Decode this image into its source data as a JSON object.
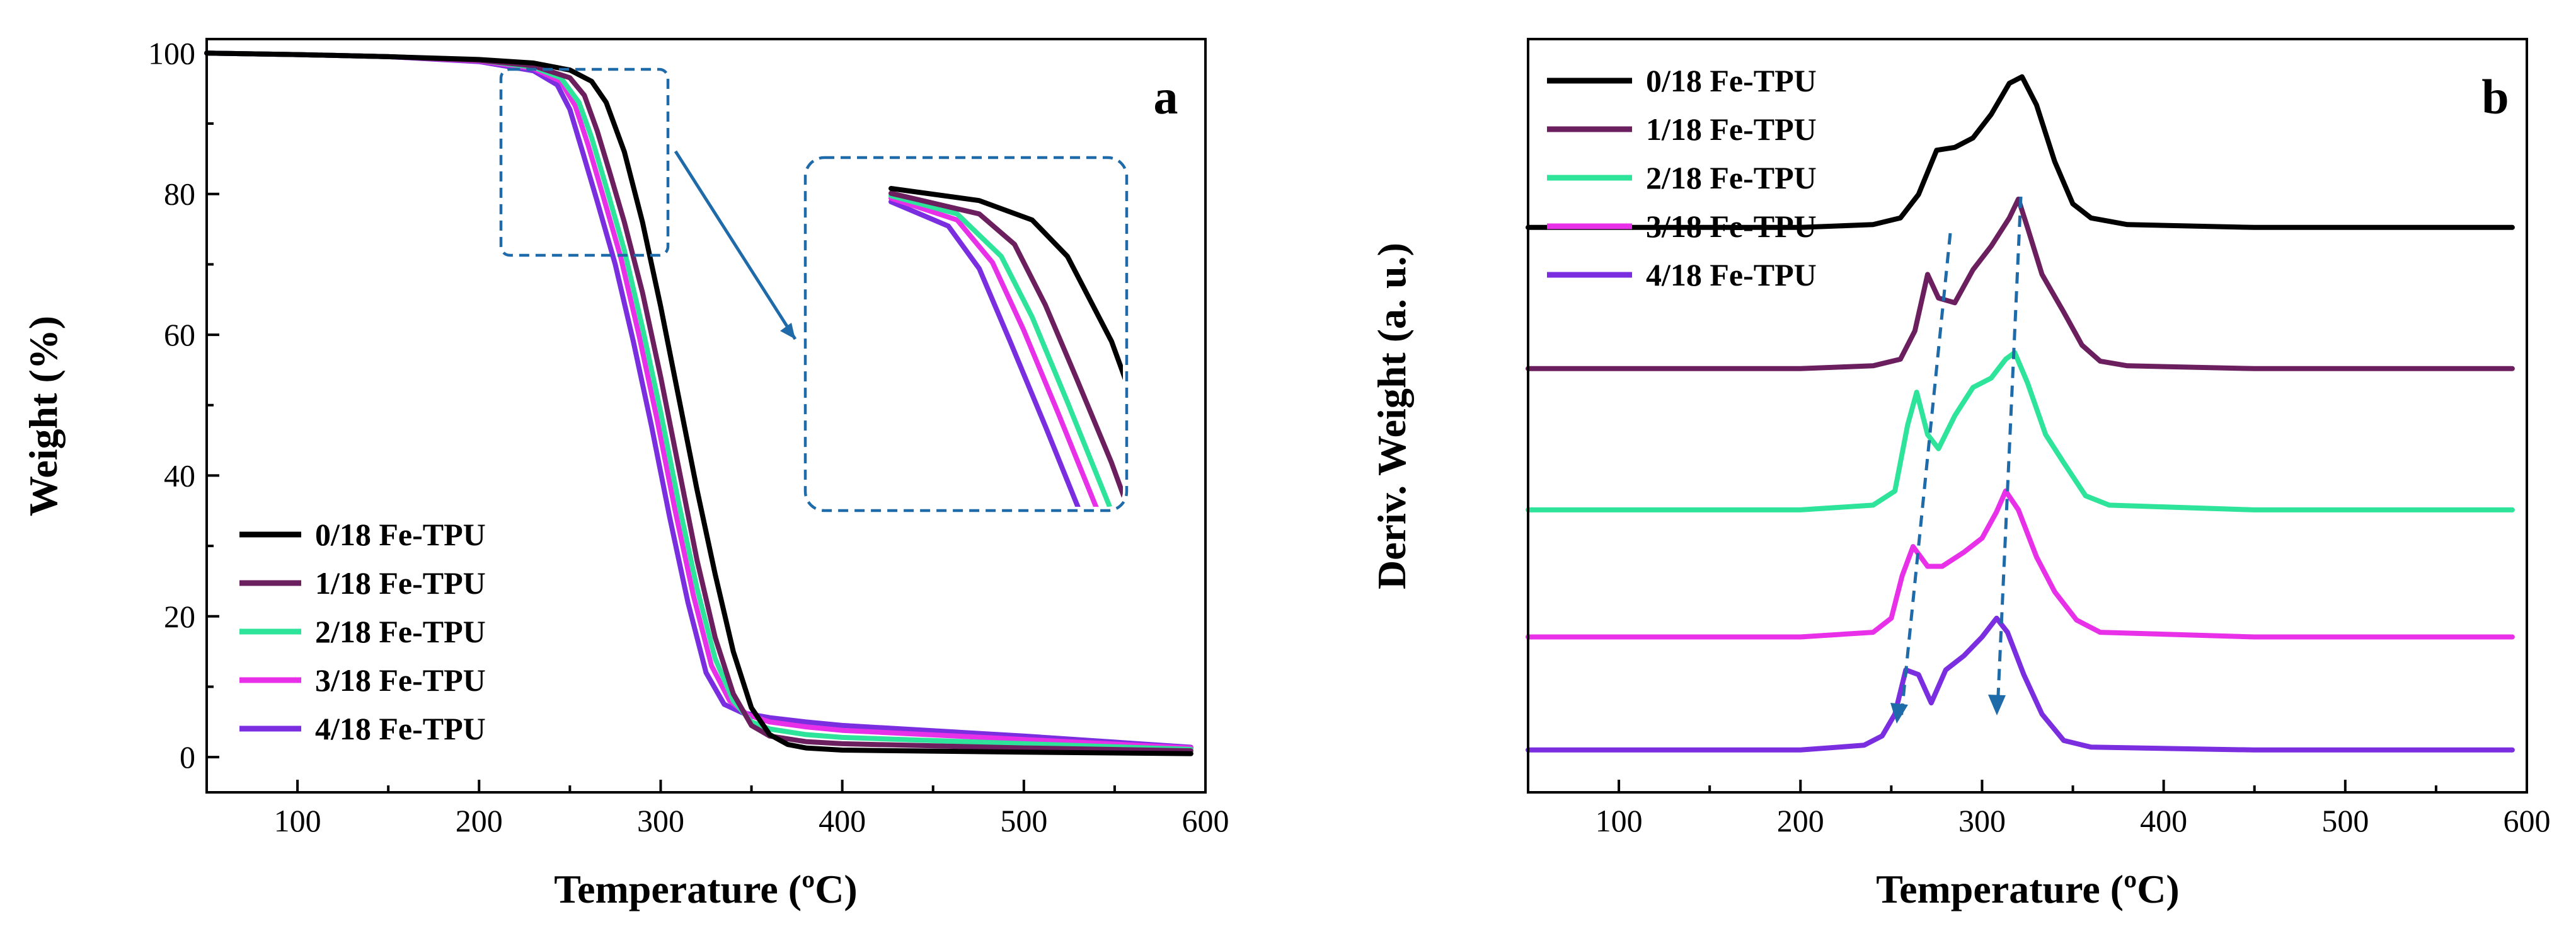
{
  "chart_data": [
    {
      "id": "a",
      "type": "line",
      "panel_label": "a",
      "xlabel": "Temperature (ºC)",
      "ylabel": "Weight (%)",
      "xlim": [
        50,
        600
      ],
      "ylim": [
        -5,
        102
      ],
      "xticks": [
        100,
        200,
        300,
        400,
        500,
        600
      ],
      "yticks": [
        0,
        20,
        40,
        60,
        80,
        100
      ],
      "legend_position": "lower-left",
      "inset": {
        "description": "zoom of region",
        "x_range": [
          212,
          282
        ],
        "y_range": [
          73,
          100
        ]
      },
      "series": [
        {
          "name": "0/18 Fe-TPU",
          "color": "#000000",
          "points": [
            [
              50,
              100
            ],
            [
              100,
              99.8
            ],
            [
              150,
              99.5
            ],
            [
              200,
              99.1
            ],
            [
              230,
              98.6
            ],
            [
              250,
              97.6
            ],
            [
              262,
              96
            ],
            [
              270,
              93
            ],
            [
              280,
              86
            ],
            [
              290,
              76
            ],
            [
              300,
              64
            ],
            [
              310,
              51
            ],
            [
              320,
              38
            ],
            [
              330,
              26
            ],
            [
              340,
              15
            ],
            [
              350,
              7
            ],
            [
              360,
              3.2
            ],
            [
              370,
              1.8
            ],
            [
              380,
              1.3
            ],
            [
              400,
              1.0
            ],
            [
              500,
              0.7
            ],
            [
              592,
              0.5
            ]
          ]
        },
        {
          "name": "1/18 Fe-TPU",
          "color": "#6b1f5f",
          "points": [
            [
              50,
              100
            ],
            [
              100,
              99.8
            ],
            [
              150,
              99.5
            ],
            [
              200,
              99.0
            ],
            [
              230,
              98.2
            ],
            [
              250,
              96.5
            ],
            [
              258,
              94
            ],
            [
              265,
              89
            ],
            [
              272,
              83
            ],
            [
              280,
              76
            ],
            [
              290,
              66
            ],
            [
              300,
              54
            ],
            [
              310,
              41
            ],
            [
              320,
              28
            ],
            [
              330,
              17
            ],
            [
              340,
              9
            ],
            [
              350,
              4.5
            ],
            [
              360,
              3.0
            ],
            [
              380,
              2.2
            ],
            [
              400,
              1.9
            ],
            [
              500,
              1.3
            ],
            [
              592,
              0.9
            ]
          ]
        },
        {
          "name": "2/18 Fe-TPU",
          "color": "#2ee39a",
          "points": [
            [
              50,
              100
            ],
            [
              100,
              99.8
            ],
            [
              150,
              99.5
            ],
            [
              200,
              99.0
            ],
            [
              230,
              98.0
            ],
            [
              245,
              96.5
            ],
            [
              255,
              93
            ],
            [
              262,
              88
            ],
            [
              270,
              81
            ],
            [
              280,
              72
            ],
            [
              290,
              61
            ],
            [
              300,
              49
            ],
            [
              310,
              36
            ],
            [
              320,
              24
            ],
            [
              330,
              14
            ],
            [
              340,
              8
            ],
            [
              350,
              5
            ],
            [
              360,
              4.0
            ],
            [
              380,
              3.2
            ],
            [
              400,
              2.8
            ],
            [
              500,
              1.9
            ],
            [
              592,
              1.1
            ]
          ]
        },
        {
          "name": "3/18 Fe-TPU",
          "color": "#e830e8",
          "points": [
            [
              50,
              100
            ],
            [
              100,
              99.8
            ],
            [
              150,
              99.5
            ],
            [
              200,
              98.9
            ],
            [
              230,
              97.8
            ],
            [
              245,
              96
            ],
            [
              253,
              92.5
            ],
            [
              260,
              87
            ],
            [
              268,
              80
            ],
            [
              278,
              71
            ],
            [
              288,
              60
            ],
            [
              298,
              48
            ],
            [
              308,
              35
            ],
            [
              318,
              23
            ],
            [
              328,
              13
            ],
            [
              338,
              8
            ],
            [
              348,
              6
            ],
            [
              360,
              5.0
            ],
            [
              380,
              4.3
            ],
            [
              400,
              3.8
            ],
            [
              500,
              2.5
            ],
            [
              592,
              1.3
            ]
          ]
        },
        {
          "name": "4/18 Fe-TPU",
          "color": "#7a2ee0",
          "points": [
            [
              50,
              100
            ],
            [
              100,
              99.8
            ],
            [
              150,
              99.5
            ],
            [
              200,
              98.8
            ],
            [
              230,
              97.5
            ],
            [
              243,
              95.5
            ],
            [
              250,
              92
            ],
            [
              257,
              86
            ],
            [
              265,
              79
            ],
            [
              275,
              70
            ],
            [
              285,
              59
            ],
            [
              295,
              47
            ],
            [
              305,
              34
            ],
            [
              315,
              22
            ],
            [
              325,
              12
            ],
            [
              335,
              7.5
            ],
            [
              345,
              6.3
            ],
            [
              360,
              5.6
            ],
            [
              380,
              5.0
            ],
            [
              400,
              4.5
            ],
            [
              500,
              3.0
            ],
            [
              592,
              1.4
            ]
          ]
        }
      ]
    },
    {
      "id": "b",
      "type": "line",
      "panel_label": "b",
      "xlabel": "Temperature (ºC)",
      "ylabel": "Deriv. Weight (a. u.)",
      "xlim": [
        50,
        600
      ],
      "xticks": [
        100,
        200,
        300,
        400,
        500,
        600
      ],
      "y_tick_labels": "none",
      "legend_position": "top-left",
      "annotations": [
        "dashed arrow tracking first peak shift (~280 to ~258 ºC)",
        "dashed arrow tracking main peak shift (~318 to ~310 ºC)"
      ],
      "series": [
        {
          "name": "0/18 Fe-TPU",
          "color": "#000000",
          "baseline": 60,
          "points": [
            [
              50,
              0
            ],
            [
              200,
              0
            ],
            [
              240,
              0.3
            ],
            [
              255,
              1
            ],
            [
              265,
              3.5
            ],
            [
              275,
              8.2
            ],
            [
              285,
              8.5
            ],
            [
              295,
              9.5
            ],
            [
              305,
              12
            ],
            [
              315,
              15.3
            ],
            [
              322,
              16
            ],
            [
              330,
              13
            ],
            [
              340,
              7
            ],
            [
              350,
              2.5
            ],
            [
              360,
              1
            ],
            [
              380,
              0.3
            ],
            [
              450,
              0
            ],
            [
              592,
              0
            ]
          ]
        },
        {
          "name": "1/18 Fe-TPU",
          "color": "#6b1f5f",
          "baseline": 45,
          "points": [
            [
              50,
              0
            ],
            [
              200,
              0
            ],
            [
              240,
              0.3
            ],
            [
              255,
              1
            ],
            [
              263,
              4
            ],
            [
              270,
              10
            ],
            [
              276,
              7.5
            ],
            [
              285,
              7
            ],
            [
              295,
              10.5
            ],
            [
              305,
              13
            ],
            [
              315,
              16
            ],
            [
              320,
              18
            ],
            [
              325,
              15
            ],
            [
              333,
              10
            ],
            [
              345,
              6
            ],
            [
              355,
              2.5
            ],
            [
              365,
              0.8
            ],
            [
              380,
              0.3
            ],
            [
              450,
              0
            ],
            [
              592,
              0
            ]
          ]
        },
        {
          "name": "2/18 Fe-TPU",
          "color": "#2ee39a",
          "baseline": 30,
          "points": [
            [
              50,
              0
            ],
            [
              200,
              0
            ],
            [
              240,
              0.5
            ],
            [
              252,
              2
            ],
            [
              259,
              9
            ],
            [
              264,
              12.5
            ],
            [
              270,
              8
            ],
            [
              276,
              6.5
            ],
            [
              285,
              10
            ],
            [
              295,
              13
            ],
            [
              305,
              14
            ],
            [
              313,
              16
            ],
            [
              318,
              16.7
            ],
            [
              325,
              13.5
            ],
            [
              335,
              8
            ],
            [
              345,
              5
            ],
            [
              357,
              1.5
            ],
            [
              370,
              0.5
            ],
            [
              450,
              0
            ],
            [
              592,
              0
            ]
          ]
        },
        {
          "name": "3/18 Fe-TPU",
          "color": "#e830e8",
          "baseline": 16.5,
          "points": [
            [
              50,
              0
            ],
            [
              200,
              0
            ],
            [
              240,
              0.5
            ],
            [
              250,
              2
            ],
            [
              256,
              6.5
            ],
            [
              262,
              9.6
            ],
            [
              270,
              7.5
            ],
            [
              278,
              7.5
            ],
            [
              290,
              9
            ],
            [
              300,
              10.5
            ],
            [
              308,
              13.3
            ],
            [
              313,
              15.5
            ],
            [
              320,
              13.5
            ],
            [
              330,
              8.5
            ],
            [
              340,
              4.8
            ],
            [
              352,
              1.8
            ],
            [
              365,
              0.5
            ],
            [
              450,
              0
            ],
            [
              592,
              0
            ]
          ]
        },
        {
          "name": "4/18 Fe-TPU",
          "color": "#7a2ee0",
          "baseline": 4.5,
          "points": [
            [
              50,
              0
            ],
            [
              200,
              0
            ],
            [
              235,
              0.5
            ],
            [
              245,
              1.5
            ],
            [
              252,
              3.8
            ],
            [
              258,
              8.5
            ],
            [
              265,
              8
            ],
            [
              272,
              5
            ],
            [
              280,
              8.5
            ],
            [
              290,
              10
            ],
            [
              300,
              12
            ],
            [
              308,
              14
            ],
            [
              314,
              12.5
            ],
            [
              323,
              8
            ],
            [
              333,
              3.8
            ],
            [
              345,
              1
            ],
            [
              360,
              0.3
            ],
            [
              450,
              0
            ],
            [
              592,
              0
            ]
          ]
        }
      ]
    }
  ]
}
